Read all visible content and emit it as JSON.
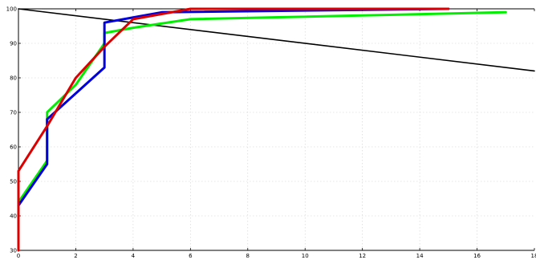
{
  "chart_data": {
    "type": "line",
    "title": "",
    "xlabel": "",
    "ylabel": "",
    "xlim": [
      0,
      18
    ],
    "ylim": [
      30,
      100
    ],
    "grid": true,
    "x_ticks": [
      0,
      2,
      4,
      6,
      8,
      10,
      12,
      14,
      16,
      18
    ],
    "y_ticks": [
      30,
      40,
      50,
      60,
      70,
      80,
      90,
      100
    ],
    "x_tick_labels": [
      "0",
      "2",
      "4",
      "6",
      "8",
      "10",
      "12",
      "14",
      "16",
      "18"
    ],
    "y_tick_labels": [
      "30",
      "40",
      "50",
      "60",
      "70",
      "80",
      "90",
      "100"
    ],
    "series": [
      {
        "color": "#000000",
        "x": [
          0,
          18
        ],
        "y": [
          100,
          82
        ]
      },
      {
        "color": "#00ee00",
        "x": [
          0,
          1,
          1,
          2,
          3,
          3,
          4,
          6,
          17
        ],
        "y": [
          44,
          56,
          70,
          78,
          90,
          93,
          94.5,
          97,
          99
        ]
      },
      {
        "color": "#0000dd",
        "x": [
          0,
          1,
          1,
          3,
          3,
          4,
          5,
          15
        ],
        "y": [
          43,
          55,
          68,
          83,
          96,
          97.5,
          99,
          100
        ]
      },
      {
        "color": "#dd0000",
        "x": [
          0,
          0,
          1,
          2,
          3,
          4,
          6,
          15
        ],
        "y": [
          30,
          53,
          66,
          80,
          89,
          97,
          100,
          100
        ]
      }
    ]
  }
}
